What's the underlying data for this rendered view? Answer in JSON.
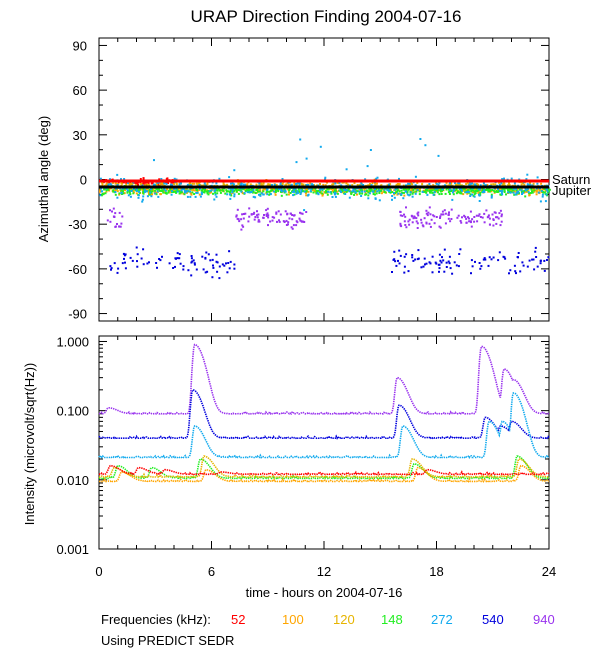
{
  "title": "URAP Direction Finding  2004-07-16",
  "source_note": "Using PREDICT SEDR",
  "frequencies_label": "Frequencies (kHz):",
  "frequencies": [
    {
      "value": "52",
      "color": "#ff0000"
    },
    {
      "value": "100",
      "color": "#ffa500"
    },
    {
      "value": "120",
      "color": "#e6b400"
    },
    {
      "value": "148",
      "color": "#22ee22"
    },
    {
      "value": "272",
      "color": "#11aaee"
    },
    {
      "value": "540",
      "color": "#0000dd"
    },
    {
      "value": "940",
      "color": "#9933ee"
    }
  ],
  "chart_data": [
    {
      "type": "scatter",
      "title": "URAP Direction Finding  2004-07-16",
      "xlabel": "",
      "ylabel": "Azimuthal angle (deg)",
      "xlim": [
        0,
        24
      ],
      "ylim": [
        -95,
        95
      ],
      "yticks": [
        "90",
        "60",
        "30",
        "0",
        "-30",
        "-60",
        "-90"
      ],
      "ytick_values": [
        90,
        60,
        30,
        0,
        -30,
        -60,
        -90
      ],
      "reference_lines": [
        {
          "name": "Saturn",
          "y": -1,
          "color": "#ff0000"
        },
        {
          "name": "Jupiter",
          "y": -5,
          "color": "#000000"
        }
      ],
      "series": [
        {
          "name": "52",
          "color": "#ff0000",
          "center": -1,
          "spread": 3,
          "hours": [
            [
              0.2,
              2.6
            ],
            [
              2.5,
              4.0
            ]
          ]
        },
        {
          "name": "100",
          "color": "#ffa500",
          "center": -6,
          "spread": 5,
          "hours": [
            [
              0,
              24
            ]
          ]
        },
        {
          "name": "120",
          "color": "#e6b400",
          "center": -4,
          "spread": 5,
          "hours": [
            [
              0,
              24
            ]
          ]
        },
        {
          "name": "148",
          "color": "#22ee22",
          "center": -7,
          "spread": 4,
          "hours": [
            [
              0,
              24
            ]
          ]
        },
        {
          "name": "272",
          "color": "#11aaee",
          "center": -5,
          "spread": 10,
          "hours": [
            [
              0,
              24
            ]
          ]
        },
        {
          "name": "540",
          "color": "#0000dd",
          "center": -55,
          "spread": 12,
          "hours": [
            [
              0.5,
              7.2
            ],
            [
              15.5,
              24
            ]
          ]
        },
        {
          "name": "940",
          "color": "#9933ee",
          "center": -25,
          "spread": 10,
          "hours": [
            [
              0.4,
              1.2
            ],
            [
              7.2,
              11.0
            ],
            [
              16.0,
              21.5
            ]
          ]
        }
      ]
    },
    {
      "type": "line",
      "title": "",
      "xlabel": "time - hours on 2004-07-16",
      "ylabel": "Intensity (microvolt/sqrt(Hz))",
      "yscale": "log",
      "xlim": [
        0,
        24
      ],
      "ylim": [
        0.001,
        1.2
      ],
      "xticks": [
        "0",
        "6",
        "12",
        "18",
        "24"
      ],
      "xtick_values": [
        0,
        6,
        12,
        18,
        24
      ],
      "yticks": [
        "1.000",
        "0.100",
        "0.010",
        "0.001"
      ],
      "ytick_values": [
        1,
        0.1,
        0.01,
        0.001
      ],
      "series": [
        {
          "name": "940",
          "color": "#9933ee",
          "baseline": 0.09,
          "peaks": [
            [
              0.5,
              0.11
            ],
            [
              5.1,
              0.9
            ],
            [
              15.9,
              0.3
            ],
            [
              20.4,
              0.85
            ],
            [
              21.6,
              0.4
            ],
            [
              22.1,
              0.28
            ]
          ]
        },
        {
          "name": "540",
          "color": "#0000dd",
          "baseline": 0.04,
          "peaks": [
            [
              5.0,
              0.2
            ],
            [
              16.0,
              0.12
            ],
            [
              20.6,
              0.08
            ],
            [
              21.4,
              0.06
            ],
            [
              22.0,
              0.07
            ]
          ]
        },
        {
          "name": "272",
          "color": "#11aaee",
          "baseline": 0.021,
          "peaks": [
            [
              5.1,
              0.06
            ],
            [
              16.2,
              0.06
            ],
            [
              20.8,
              0.07
            ],
            [
              21.5,
              0.07
            ],
            [
              22.1,
              0.18
            ]
          ]
        },
        {
          "name": "148",
          "color": "#22ee22",
          "baseline": 0.0105,
          "peaks": [
            [
              1.0,
              0.016
            ],
            [
              2.8,
              0.015
            ],
            [
              5.4,
              0.02
            ],
            [
              16.8,
              0.017
            ],
            [
              22.3,
              0.022
            ]
          ]
        },
        {
          "name": "120",
          "color": "#e6b400",
          "baseline": 0.011,
          "peaks": [
            [
              0.8,
              0.015
            ],
            [
              5.6,
              0.022
            ],
            [
              16.7,
              0.02
            ],
            [
              22.4,
              0.02
            ]
          ]
        },
        {
          "name": "100",
          "color": "#ffa500",
          "baseline": 0.0095,
          "peaks": [
            [
              1.2,
              0.013
            ],
            [
              5.7,
              0.014
            ],
            [
              17.0,
              0.015
            ],
            [
              22.5,
              0.016
            ]
          ]
        },
        {
          "name": "52",
          "color": "#ff0000",
          "baseline": 0.012,
          "peaks": [
            [
              0.6,
              0.016
            ],
            [
              2.1,
              0.015
            ],
            [
              3.5,
              0.014
            ],
            [
              6.5,
              0.013
            ],
            [
              17.5,
              0.014
            ]
          ]
        }
      ]
    }
  ]
}
